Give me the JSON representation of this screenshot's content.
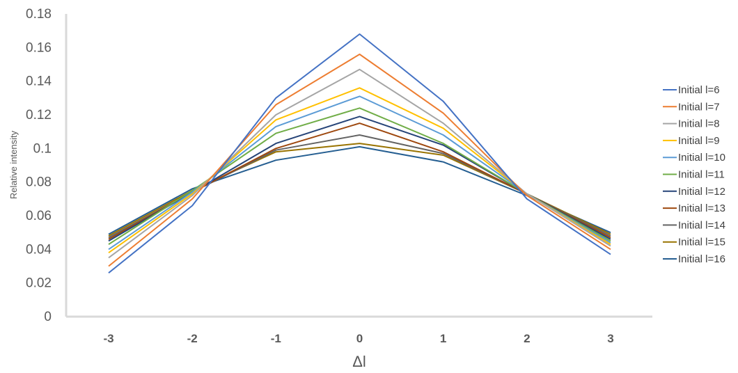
{
  "chart_data": {
    "type": "line",
    "title": "",
    "xlabel": "Δl",
    "ylabel": "Relative intensity",
    "x": [
      -3,
      -2,
      -1,
      0,
      1,
      2,
      3
    ],
    "x_tick_labels": [
      "-3",
      "-2",
      "-1",
      "0",
      "1",
      "2",
      "3"
    ],
    "ylim": [
      0,
      0.18
    ],
    "y_ticks": [
      0,
      0.02,
      0.04,
      0.06,
      0.08,
      0.1,
      0.12,
      0.14,
      0.16,
      0.18
    ],
    "y_tick_labels": [
      "0",
      "0.02",
      "0.04",
      "0.06",
      "0.08",
      "0.1",
      "0.12",
      "0.14",
      "0.16",
      "0.18"
    ],
    "grid": false,
    "legend_position": "right",
    "series": [
      {
        "name": "Initial l=6",
        "color": "#4472C4",
        "values": [
          0.026,
          0.066,
          0.13,
          0.168,
          0.128,
          0.07,
          0.037
        ]
      },
      {
        "name": "Initial l=7",
        "color": "#ED7D31",
        "values": [
          0.03,
          0.07,
          0.126,
          0.156,
          0.121,
          0.072,
          0.04
        ]
      },
      {
        "name": "Initial l=8",
        "color": "#A5A5A5",
        "values": [
          0.035,
          0.072,
          0.12,
          0.147,
          0.115,
          0.073,
          0.042
        ]
      },
      {
        "name": "Initial l=9",
        "color": "#FFC000",
        "values": [
          0.038,
          0.073,
          0.117,
          0.136,
          0.112,
          0.073,
          0.043
        ]
      },
      {
        "name": "Initial l=10",
        "color": "#5B9BD5",
        "values": [
          0.04,
          0.074,
          0.113,
          0.131,
          0.108,
          0.073,
          0.044
        ]
      },
      {
        "name": "Initial l=11",
        "color": "#70AD47",
        "values": [
          0.043,
          0.075,
          0.109,
          0.124,
          0.103,
          0.073,
          0.045
        ]
      },
      {
        "name": "Initial l=12",
        "color": "#264478",
        "values": [
          0.045,
          0.074,
          0.103,
          0.119,
          0.102,
          0.073,
          0.046
        ]
      },
      {
        "name": "Initial l=13",
        "color": "#9E480E",
        "values": [
          0.046,
          0.074,
          0.1,
          0.115,
          0.098,
          0.073,
          0.047
        ]
      },
      {
        "name": "Initial l=14",
        "color": "#636363",
        "values": [
          0.047,
          0.074,
          0.099,
          0.108,
          0.097,
          0.073,
          0.048
        ]
      },
      {
        "name": "Initial l=15",
        "color": "#997300",
        "values": [
          0.048,
          0.075,
          0.098,
          0.103,
          0.096,
          0.073,
          0.049
        ]
      },
      {
        "name": "Initial l=16",
        "color": "#255E91",
        "values": [
          0.049,
          0.076,
          0.093,
          0.101,
          0.092,
          0.072,
          0.05
        ]
      }
    ]
  }
}
